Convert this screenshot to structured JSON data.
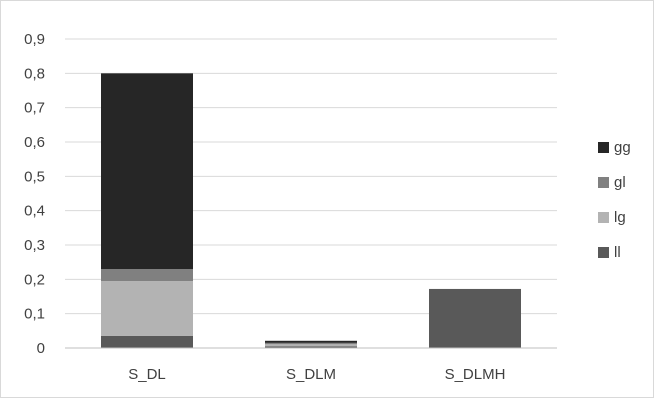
{
  "chart_data": {
    "type": "bar",
    "stacked": true,
    "categories": [
      "S_DL",
      "S_DLM",
      "S_DLMH"
    ],
    "series": [
      {
        "name": "ll",
        "color": "#595959",
        "values": [
          0.035,
          0.005,
          0.172
        ]
      },
      {
        "name": "lg",
        "color": "#b3b3b3",
        "values": [
          0.16,
          0.006,
          0.0
        ]
      },
      {
        "name": "gl",
        "color": "#808080",
        "values": [
          0.035,
          0.004,
          0.0
        ]
      },
      {
        "name": "gg",
        "color": "#262626",
        "values": [
          0.57,
          0.006,
          0.0
        ]
      }
    ],
    "legend_order": [
      "gg",
      "gl",
      "lg",
      "ll"
    ],
    "yticks": [
      "0",
      "0,1",
      "0,2",
      "0,3",
      "0,4",
      "0,5",
      "0,6",
      "0,7",
      "0,8",
      "0,9"
    ],
    "ylim": [
      0,
      0.9
    ],
    "grid": true,
    "legend_position": "right",
    "title": "",
    "xlabel": "",
    "ylabel": ""
  }
}
